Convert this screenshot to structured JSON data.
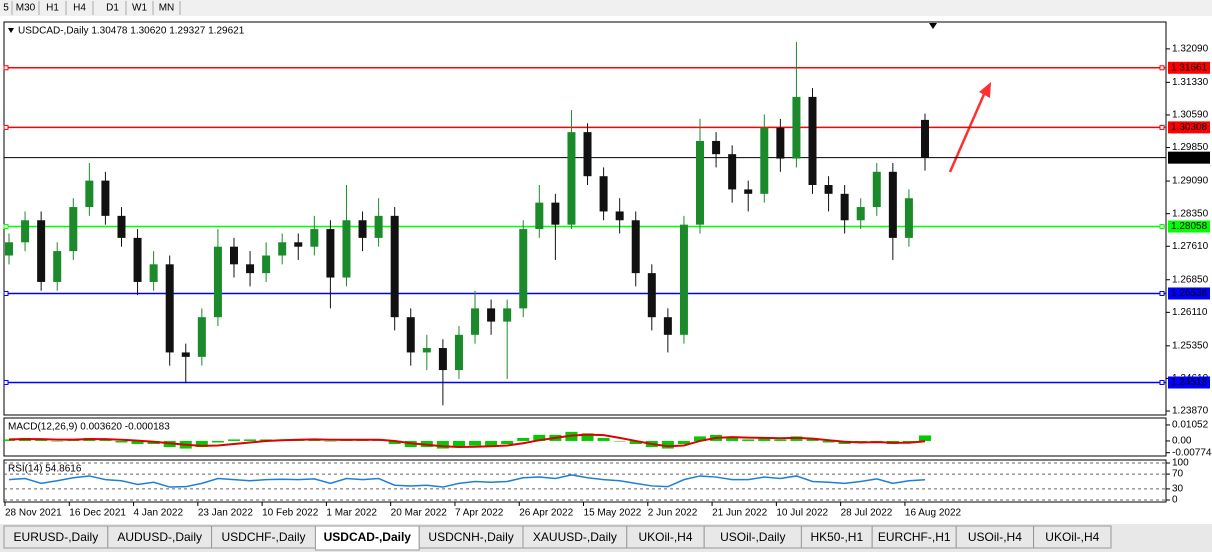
{
  "toolbar": {
    "timeframes": [
      "5",
      "M30",
      "H1",
      "H4",
      "D1",
      "W1",
      "MN"
    ]
  },
  "chart_data": [
    {
      "type": "candlestick",
      "title": "USDCAD-,Daily 1.30478 1.30620 1.29327 1.29621",
      "categories": [
        "28 Nov 2021",
        null,
        null,
        null,
        "16 Dec 2021",
        null,
        null,
        null,
        "4 Jan 2022",
        null,
        null,
        null,
        "23 Jan 2022",
        null,
        null,
        null,
        "10 Feb 2022",
        null,
        null,
        null,
        "1 Mar 2022",
        null,
        null,
        null,
        "20 Mar 2022",
        null,
        null,
        null,
        "7 Apr 2022",
        null,
        null,
        null,
        "26 Apr 2022",
        null,
        null,
        null,
        "15 May 2022",
        null,
        null,
        null,
        "2 Jun 2022",
        null,
        null,
        null,
        "21 Jun 2022",
        null,
        null,
        null,
        "10 Jul 2022",
        null,
        null,
        null,
        "28 Jul 2022",
        null,
        null,
        null,
        "16 Aug 2022",
        null
      ],
      "open": [
        1.274,
        1.277,
        1.282,
        1.268,
        1.275,
        1.285,
        1.291,
        1.283,
        1.278,
        1.268,
        1.272,
        1.252,
        1.251,
        1.26,
        1.276,
        1.272,
        1.27,
        1.274,
        1.277,
        1.276,
        1.28,
        1.269,
        1.282,
        1.278,
        1.283,
        1.26,
        1.252,
        1.253,
        1.248,
        1.256,
        1.262,
        1.259,
        1.262,
        1.28,
        1.286,
        1.281,
        1.302,
        1.292,
        1.284,
        1.282,
        1.27,
        1.26,
        1.256,
        1.281,
        1.3,
        1.297,
        1.289,
        1.288,
        1.303,
        1.296,
        1.31,
        1.29,
        1.288,
        1.282,
        1.285,
        1.293,
        1.278,
        1.30478
      ],
      "high": [
        1.279,
        1.284,
        1.284,
        1.277,
        1.287,
        1.295,
        1.293,
        1.285,
        1.28,
        1.275,
        1.274,
        1.254,
        1.262,
        1.28,
        1.278,
        1.275,
        1.277,
        1.279,
        1.279,
        1.283,
        1.282,
        1.29,
        1.284,
        1.287,
        1.285,
        1.262,
        1.256,
        1.255,
        1.258,
        1.266,
        1.264,
        1.264,
        1.282,
        1.29,
        1.288,
        1.307,
        1.304,
        1.294,
        1.287,
        1.284,
        1.272,
        1.262,
        1.283,
        1.305,
        1.302,
        1.299,
        1.291,
        1.306,
        1.305,
        1.3225,
        1.312,
        1.292,
        1.29,
        1.287,
        1.295,
        1.295,
        1.289,
        1.3062
      ],
      "low": [
        1.272,
        1.275,
        1.266,
        1.266,
        1.273,
        1.283,
        1.281,
        1.276,
        1.265,
        1.266,
        1.249,
        1.245,
        1.249,
        1.258,
        1.269,
        1.267,
        1.268,
        1.272,
        1.273,
        1.274,
        1.262,
        1.267,
        1.275,
        1.276,
        1.257,
        1.249,
        1.248,
        1.24,
        1.246,
        1.254,
        1.256,
        1.246,
        1.26,
        1.278,
        1.273,
        1.28,
        1.29,
        1.282,
        1.279,
        1.267,
        1.257,
        1.252,
        1.254,
        1.279,
        1.294,
        1.286,
        1.284,
        1.286,
        1.293,
        1.294,
        1.288,
        1.284,
        1.279,
        1.28,
        1.283,
        1.273,
        1.276,
        1.29327
      ],
      "close": [
        1.277,
        1.282,
        1.268,
        1.275,
        1.285,
        1.291,
        1.283,
        1.278,
        1.268,
        1.272,
        1.252,
        1.251,
        1.26,
        1.276,
        1.272,
        1.27,
        1.274,
        1.277,
        1.276,
        1.28,
        1.269,
        1.282,
        1.278,
        1.283,
        1.26,
        1.252,
        1.253,
        1.248,
        1.256,
        1.262,
        1.259,
        1.262,
        1.28,
        1.286,
        1.281,
        1.302,
        1.292,
        1.284,
        1.282,
        1.27,
        1.26,
        1.256,
        1.281,
        1.3,
        1.297,
        1.289,
        1.288,
        1.303,
        1.296,
        1.31,
        1.29,
        1.288,
        1.282,
        1.285,
        1.293,
        1.278,
        1.287,
        1.29621
      ],
      "up_color": "#1a8a2a",
      "down_color": "#111111",
      "ylim": [
        1.2378,
        1.327
      ],
      "yticks": [
        {
          "value": 1.3209,
          "label": "1.32090"
        },
        {
          "value": 1.3133,
          "label": "1.31330"
        },
        {
          "value": 1.3059,
          "label": "1.30590"
        },
        {
          "value": 1.2985,
          "label": "1.29850"
        },
        {
          "value": 1.2909,
          "label": "1.29090"
        },
        {
          "value": 1.2835,
          "label": "1.28350"
        },
        {
          "value": 1.2761,
          "label": "1.27610"
        },
        {
          "value": 1.2685,
          "label": "1.26850"
        },
        {
          "value": 1.2611,
          "label": "1.26110"
        },
        {
          "value": 1.2535,
          "label": "1.25350"
        },
        {
          "value": 1.2461,
          "label": "1.24610"
        },
        {
          "value": 1.2387,
          "label": "1.23870"
        }
      ],
      "levels": [
        {
          "value": 1.31661,
          "color": "#ff0000"
        },
        {
          "value": 1.30308,
          "color": "#ff0000"
        },
        {
          "value": 1.28058,
          "color": "#00ff00"
        },
        {
          "value": 1.26538,
          "color": "#0000ff"
        },
        {
          "value": 1.24518,
          "color": "#0000ff"
        }
      ],
      "last_price_color": "#000000"
    },
    {
      "type": "bar",
      "title": "MACD(12,26,9) 0.003620 -0.000183",
      "values": [
        0.001,
        0.002,
        0.001,
        0.0,
        0.001,
        0.002,
        0.001,
        -0.001,
        -0.002,
        -0.002,
        -0.004,
        -0.005,
        -0.004,
        -0.001,
        0.001,
        0.001,
        0.001,
        0.001,
        0.001,
        0.001,
        0.0,
        0.001,
        0.001,
        0.001,
        -0.002,
        -0.004,
        -0.004,
        -0.005,
        -0.004,
        -0.003,
        -0.003,
        -0.002,
        0.002,
        0.004,
        0.004,
        0.006,
        0.005,
        0.002,
        0.0,
        -0.002,
        -0.004,
        -0.005,
        -0.002,
        0.003,
        0.004,
        0.002,
        0.001,
        0.002,
        0.001,
        0.003,
        0.001,
        -0.001,
        -0.002,
        -0.001,
        0.0,
        -0.002,
        -0.001,
        0.00362
      ],
      "signal": [
        0.001,
        0.0012,
        0.0012,
        0.0009,
        0.0009,
        0.0012,
        0.0012,
        0.0008,
        0.0002,
        -0.0005,
        -0.0015,
        -0.0025,
        -0.0032,
        -0.003,
        -0.002,
        -0.001,
        0.0,
        0.0005,
        0.0008,
        0.001,
        0.0008,
        0.0008,
        0.0008,
        0.0008,
        0.0,
        -0.0015,
        -0.0025,
        -0.0035,
        -0.004,
        -0.0038,
        -0.0035,
        -0.003,
        -0.0015,
        0.0005,
        0.002,
        0.0035,
        0.0042,
        0.0038,
        0.002,
        0.0,
        -0.002,
        -0.0035,
        -0.003,
        0.0,
        0.002,
        0.0025,
        0.0022,
        0.002,
        0.0018,
        0.002,
        0.0015,
        0.0005,
        -0.0005,
        -0.001,
        -0.0008,
        -0.0012,
        -0.0012,
        -0.000183
      ],
      "color": "#00cc00",
      "signal_color": "#dd0000",
      "ylim": [
        -0.0099,
        0.0151
      ],
      "yticks": [
        0.01052,
        {
          "value": 0,
          "label": "0.00"
        },
        -0.007744
      ]
    },
    {
      "type": "line",
      "title": "RSI(14) 54.8616",
      "values": [
        55,
        58,
        45,
        52,
        60,
        65,
        55,
        52,
        42,
        48,
        35,
        36,
        45,
        58,
        55,
        52,
        55,
        56,
        55,
        57,
        45,
        58,
        55,
        58,
        40,
        38,
        40,
        35,
        45,
        50,
        48,
        50,
        60,
        62,
        58,
        68,
        60,
        55,
        52,
        45,
        38,
        36,
        55,
        65,
        62,
        55,
        55,
        62,
        58,
        65,
        50,
        48,
        45,
        50,
        57,
        45,
        52,
        54.8616
      ],
      "color": "#1e7fd8",
      "ylim": [
        0,
        100
      ],
      "yticks": [
        100,
        70,
        30,
        0
      ]
    }
  ],
  "tabs": {
    "items": [
      "EURUSD-,Daily",
      "AUDUSD-,Daily",
      "USDCHF-,Daily",
      "USDCAD-,Daily",
      "USDCNH-,Daily",
      "XAUUSD-,Daily",
      "UKOil-,H4",
      "USOil-,Daily",
      "HK50-,H1",
      "EURCHF-,H1",
      "USOil-,H4",
      "UKOil-,H4"
    ],
    "active": 3
  }
}
